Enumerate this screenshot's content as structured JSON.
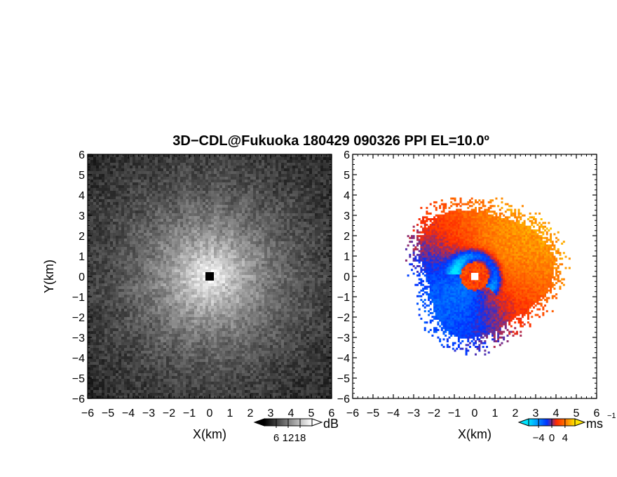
{
  "chart_data": {
    "title": "3D−CDL@Fukuoka 180429 090326 PPI EL=10.0º",
    "panels": [
      {
        "type": "heatmap",
        "quantity": "backscatter",
        "xlabel": "X(km)",
        "ylabel": "Y(km)",
        "xlim": [
          -6,
          6
        ],
        "ylim": [
          -6,
          6
        ],
        "xticks": [
          "−6",
          "−5",
          "−4",
          "−3",
          "−2",
          "−1",
          "0",
          "1",
          "2",
          "3",
          "4",
          "5",
          "6"
        ],
        "yticks": [
          "−6",
          "−5",
          "−4",
          "−3",
          "−2",
          "−1",
          "0",
          "1",
          "2",
          "3",
          "4",
          "5",
          "6"
        ],
        "colorbar": {
          "unit": "dB",
          "ticks": [
            "6",
            "12",
            "18"
          ],
          "tick_values": [
            6,
            12,
            18
          ],
          "range": [
            0,
            24
          ],
          "colors": [
            "#000000",
            "#ffffff"
          ]
        },
        "radar_center": [
          0,
          0
        ],
        "gap_radius_km": 0.2,
        "radial_decay_km": 3.2
      },
      {
        "type": "heatmap",
        "quantity": "doppler velocity",
        "xlabel": "X(km)",
        "ylabel": "",
        "xlim": [
          -6,
          6
        ],
        "ylim": [
          -6,
          6
        ],
        "xticks": [
          "−6",
          "−5",
          "−4",
          "−3",
          "−2",
          "−1",
          "0",
          "1",
          "2",
          "3",
          "4",
          "5",
          "6"
        ],
        "yticks": [
          "−6",
          "−5",
          "−4",
          "−3",
          "−2",
          "−1",
          "0",
          "1",
          "2",
          "3",
          "4",
          "5",
          "6"
        ],
        "colorbar": {
          "unit": "ms",
          "unit_exponent": "−1",
          "ticks": [
            "−4",
            "0",
            "4"
          ],
          "tick_values": [
            -4,
            0,
            4
          ],
          "range": [
            -7,
            7
          ],
          "colors": [
            "#00e5ff",
            "#0090ff",
            "#0030ff",
            "#ff2a00",
            "#ff7a00",
            "#ffe600"
          ]
        },
        "radar_center": [
          0,
          0
        ],
        "data_extent_km": {
          "x": [
            -4.4,
            4.8
          ],
          "y": [
            -3.9,
            3.9
          ]
        }
      }
    ]
  }
}
